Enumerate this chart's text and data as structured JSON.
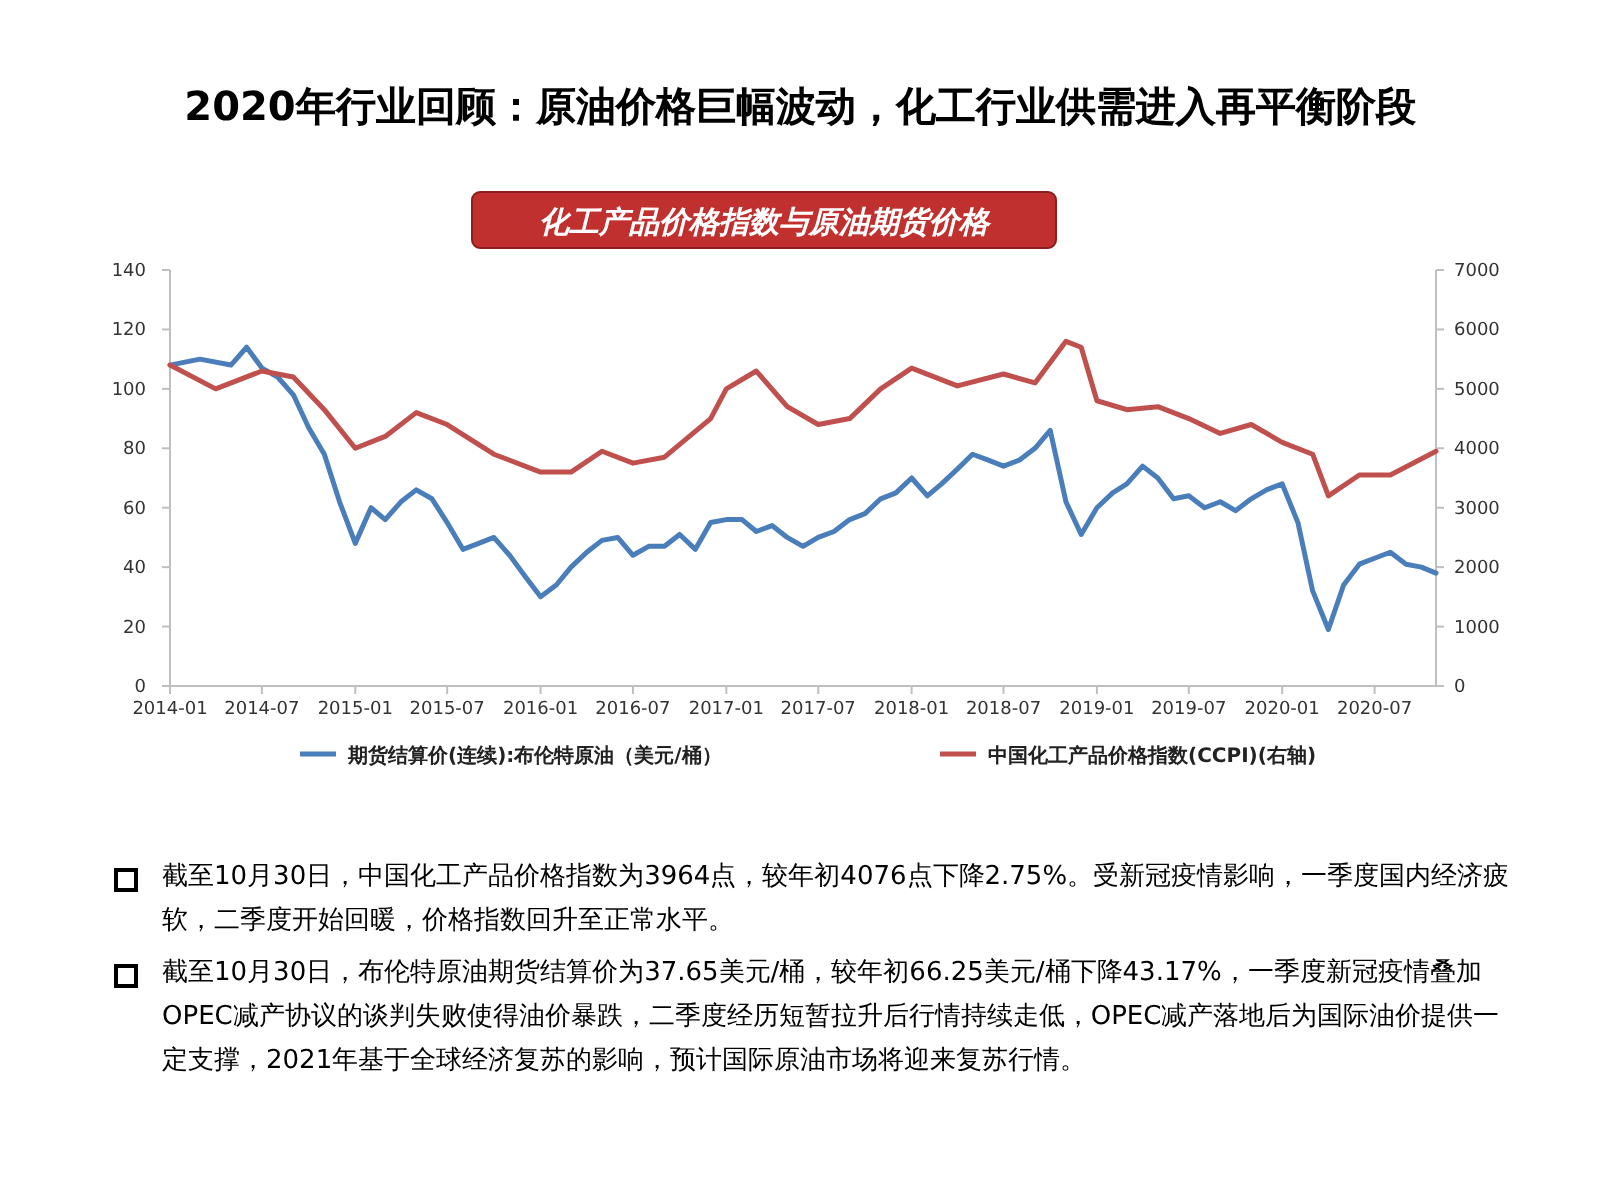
{
  "chart_data": {
    "type": "line",
    "title": "2020年行业回顾：原油价格巨幅波动，化工行业供需进入再平衡阶段",
    "subtitle": "化工产品价格指数与原油期货价格",
    "xlim": [
      "2014-01",
      "2020-10-30"
    ],
    "xticks": [
      "2014-01",
      "2014-07",
      "2015-01",
      "2015-07",
      "2016-01",
      "2016-07",
      "2017-01",
      "2017-07",
      "2018-01",
      "2018-07",
      "2019-01",
      "2019-07",
      "2020-01",
      "2020-07"
    ],
    "ylim": [
      0,
      140
    ],
    "yticks": [
      0,
      20,
      40,
      60,
      80,
      100,
      120,
      140
    ],
    "y2lim": [
      0,
      7000
    ],
    "y2ticks": [
      0,
      1000,
      2000,
      3000,
      4000,
      5000,
      6000,
      7000
    ],
    "grid": false,
    "legend": "bottom",
    "marker": "none",
    "line_style": "solid",
    "series": [
      {
        "name": "期货结算价(连续):布伦特原油（美元/桶）",
        "color": "#4a7ebb",
        "x": [
          "2014-01",
          "2014-03",
          "2014-05",
          "2014-06",
          "2014-07",
          "2014-08",
          "2014-09",
          "2014-10",
          "2014-11",
          "2014-12",
          "2015-01",
          "2015-02",
          "2015-03",
          "2015-04",
          "2015-05",
          "2015-06",
          "2015-07",
          "2015-08",
          "2015-09",
          "2015-10",
          "2015-11",
          "2015-12",
          "2016-01",
          "2016-02",
          "2016-03",
          "2016-04",
          "2016-05",
          "2016-06",
          "2016-07",
          "2016-08",
          "2016-09",
          "2016-10",
          "2016-11",
          "2016-12",
          "2017-01",
          "2017-02",
          "2017-03",
          "2017-04",
          "2017-05",
          "2017-06",
          "2017-07",
          "2017-08",
          "2017-09",
          "2017-10",
          "2017-11",
          "2017-12",
          "2018-01",
          "2018-02",
          "2018-03",
          "2018-04",
          "2018-05",
          "2018-06",
          "2018-07",
          "2018-08",
          "2018-09",
          "2018-10",
          "2018-11",
          "2018-12",
          "2019-01",
          "2019-02",
          "2019-03",
          "2019-04",
          "2019-05",
          "2019-06",
          "2019-07",
          "2019-08",
          "2019-09",
          "2019-10",
          "2019-11",
          "2019-12",
          "2020-01",
          "2020-02",
          "2020-03",
          "2020-04",
          "2020-05",
          "2020-06",
          "2020-07",
          "2020-08",
          "2020-09",
          "2020-10",
          "2020-10-30"
        ],
        "values": [
          108,
          110,
          108,
          114,
          107,
          104,
          98,
          87,
          78,
          62,
          48,
          60,
          56,
          62,
          66,
          63,
          55,
          46,
          48,
          50,
          44,
          37,
          30,
          34,
          40,
          45,
          49,
          50,
          44,
          47,
          47,
          51,
          46,
          55,
          56,
          56,
          52,
          54,
          50,
          47,
          50,
          52,
          56,
          58,
          63,
          65,
          70,
          64,
          68,
          73,
          78,
          76,
          74,
          76,
          80,
          86,
          62,
          51,
          60,
          65,
          68,
          74,
          70,
          63,
          64,
          60,
          62,
          59,
          63,
          66,
          68,
          55,
          32,
          19,
          34,
          41,
          43,
          45,
          41,
          40,
          38
        ]
      },
      {
        "name": "中国化工产品价格指数(CCPI)(右轴)",
        "color": "#c0504d",
        "axis": "y2",
        "x": [
          "2014-01",
          "2014-04",
          "2014-07",
          "2014-09",
          "2014-11",
          "2015-01",
          "2015-03",
          "2015-05",
          "2015-07",
          "2015-10",
          "2016-01",
          "2016-03",
          "2016-05",
          "2016-07",
          "2016-09",
          "2016-12",
          "2017-01",
          "2017-03",
          "2017-05",
          "2017-07",
          "2017-09",
          "2017-11",
          "2018-01",
          "2018-04",
          "2018-07",
          "2018-09",
          "2018-11",
          "2018-12",
          "2019-01",
          "2019-03",
          "2019-05",
          "2019-07",
          "2019-09",
          "2019-11",
          "2020-01",
          "2020-03",
          "2020-04",
          "2020-06",
          "2020-08",
          "2020-10-30"
        ],
        "values": [
          5400,
          5000,
          5300,
          5200,
          4650,
          4000,
          4200,
          4600,
          4400,
          3900,
          3600,
          3600,
          3950,
          3750,
          3850,
          4500,
          5000,
          5300,
          4700,
          4400,
          4500,
          5000,
          5350,
          5050,
          5250,
          5100,
          5800,
          5700,
          4800,
          4650,
          4700,
          4500,
          4250,
          4400,
          4100,
          3900,
          3200,
          3550,
          3550,
          3950
        ]
      }
    ],
    "annotations": [
      "截至10月30日，中国化工产品价格指数为3964点，较年初4076点下降2.75%。受新冠疫情影响，一季度国内经济疲软，二季度开始回暖，价格指数回升至正常水平。",
      "截至10月30日，布伦特原油期货结算价为37.65美元/桶，较年初66.25美元/桶下降43.17%，一季度新冠疫情叠加OPEC减产协议的谈判失败使得油价暴跌，二季度经历短暂拉升后行情持续走低，OPEC减产落地后为国际油价提供一定支撑，2021年基于全球经济复苏的影响，预计国际原油市场将迎来复苏行情。"
    ]
  }
}
